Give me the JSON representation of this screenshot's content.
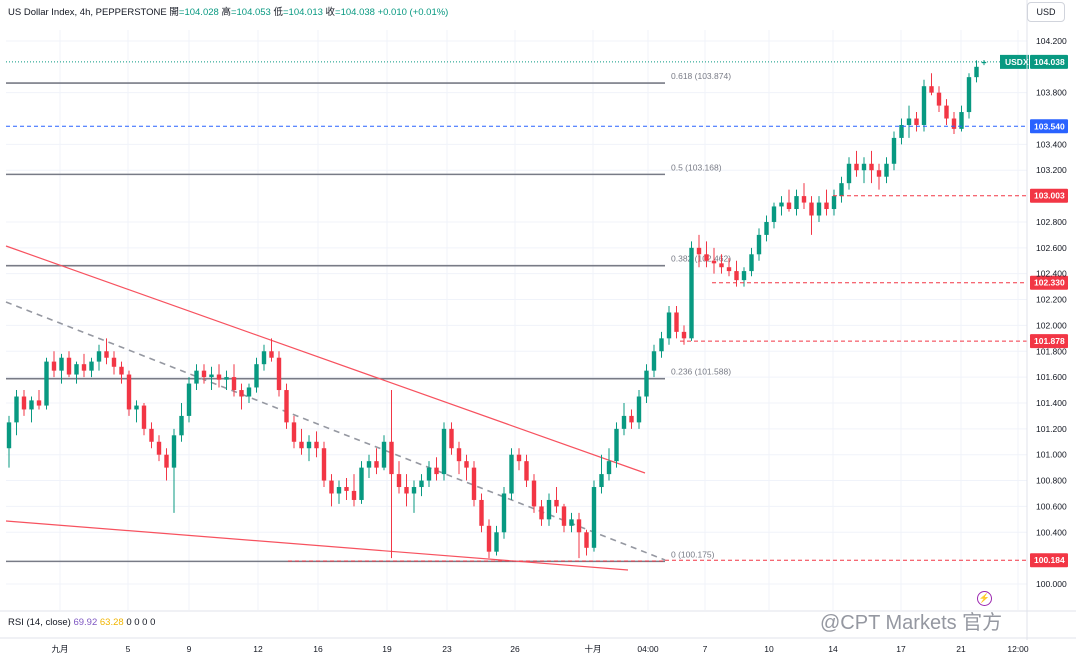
{
  "header": {
    "symbol_text": "US Dollar Index, 4h, PEPPERSTONE",
    "open_label": "開",
    "open_value": "=104.028",
    "high_label": "高",
    "high_value": "=104.053",
    "low_label": "低",
    "low_value": "=104.013",
    "close_label": "收",
    "close_value": "=104.038",
    "change": "+0.010 (+0.01%)"
  },
  "currency_button": "USD",
  "rsi": {
    "label": "RSI (14, close)",
    "value": "69.92",
    "ma_value": "63.28",
    "extra": "0 0 0 0"
  },
  "watermark": "@CPT Markets 官方",
  "colors": {
    "up": "#089981",
    "down": "#f23645",
    "blue": "#2962ff",
    "fib": "#787b86"
  },
  "chart_data": {
    "type": "candlestick",
    "symbol": "USDX",
    "timeframe": "4h",
    "x_tick_labels": [
      "九月",
      "5",
      "9",
      "12",
      "16",
      "19",
      "23",
      "26",
      "十月",
      "04:00",
      "7",
      "10",
      "14",
      "17",
      "21",
      "12:00"
    ],
    "y_ticks": [
      "104.200",
      "103.800",
      "103.400",
      "103.200",
      "102.800",
      "102.600",
      "102.400",
      "102.200",
      "102.000",
      "101.800",
      "101.600",
      "101.400",
      "101.200",
      "101.000",
      "100.800",
      "100.600",
      "100.400",
      "100.000"
    ],
    "ylim": [
      99.82,
      104.45
    ],
    "fibonacci": [
      {
        "label": "0.618 (103.874)",
        "value": 103.874
      },
      {
        "label": "0.5 (103.168)",
        "value": 103.168
      },
      {
        "label": "0.382 (102.462)",
        "value": 102.462
      },
      {
        "label": "0.236 (101.588)",
        "value": 101.588
      },
      {
        "label": "0 (100.175)",
        "value": 100.175
      }
    ],
    "price_tags": [
      {
        "label": "USDX",
        "value": "104.038",
        "kind": "last"
      },
      {
        "label": "",
        "value": "103.540",
        "kind": "blue"
      },
      {
        "label": "",
        "value": "103.003",
        "kind": "red"
      },
      {
        "label": "",
        "value": "102.330",
        "kind": "red"
      },
      {
        "label": "",
        "value": "101.878",
        "kind": "red"
      },
      {
        "label": "",
        "value": "100.184",
        "kind": "red"
      }
    ],
    "candles": [
      [
        101.05,
        101.3,
        100.9,
        101.25
      ],
      [
        101.25,
        101.5,
        101.15,
        101.45
      ],
      [
        101.45,
        101.5,
        101.3,
        101.35
      ],
      [
        101.35,
        101.45,
        101.25,
        101.42
      ],
      [
        101.42,
        101.5,
        101.35,
        101.38
      ],
      [
        101.38,
        101.75,
        101.35,
        101.72
      ],
      [
        101.72,
        101.8,
        101.6,
        101.65
      ],
      [
        101.65,
        101.78,
        101.55,
        101.75
      ],
      [
        101.75,
        101.8,
        101.6,
        101.62
      ],
      [
        101.62,
        101.72,
        101.55,
        101.7
      ],
      [
        101.7,
        101.78,
        101.6,
        101.65
      ],
      [
        101.65,
        101.75,
        101.6,
        101.72
      ],
      [
        101.72,
        101.85,
        101.65,
        101.8
      ],
      [
        101.8,
        101.9,
        101.7,
        101.75
      ],
      [
        101.75,
        101.8,
        101.62,
        101.68
      ],
      [
        101.68,
        101.72,
        101.55,
        101.62
      ],
      [
        101.62,
        101.65,
        101.3,
        101.35
      ],
      [
        101.35,
        101.42,
        101.25,
        101.38
      ],
      [
        101.38,
        101.4,
        101.15,
        101.2
      ],
      [
        101.2,
        101.25,
        101.05,
        101.1
      ],
      [
        101.1,
        101.15,
        100.95,
        101.0
      ],
      [
        101.0,
        101.05,
        100.8,
        100.9
      ],
      [
        100.9,
        101.2,
        100.55,
        101.15
      ],
      [
        101.15,
        101.4,
        101.1,
        101.3
      ],
      [
        101.3,
        101.6,
        101.25,
        101.55
      ],
      [
        101.55,
        101.7,
        101.5,
        101.65
      ],
      [
        101.65,
        101.7,
        101.55,
        101.6
      ],
      [
        101.6,
        101.68,
        101.5,
        101.62
      ],
      [
        101.62,
        101.7,
        101.52,
        101.58
      ],
      [
        101.58,
        101.65,
        101.5,
        101.6
      ],
      [
        101.6,
        101.7,
        101.45,
        101.5
      ],
      [
        101.5,
        101.55,
        101.35,
        101.45
      ],
      [
        101.45,
        101.55,
        101.4,
        101.52
      ],
      [
        101.52,
        101.75,
        101.48,
        101.7
      ],
      [
        101.7,
        101.85,
        101.65,
        101.8
      ],
      [
        101.8,
        101.9,
        101.72,
        101.75
      ],
      [
        101.75,
        101.8,
        101.45,
        101.5
      ],
      [
        101.5,
        101.55,
        101.2,
        101.25
      ],
      [
        101.25,
        101.3,
        101.05,
        101.1
      ],
      [
        101.1,
        101.2,
        101.0,
        101.05
      ],
      [
        101.05,
        101.15,
        100.95,
        101.1
      ],
      [
        101.1,
        101.18,
        100.98,
        101.05
      ],
      [
        101.05,
        101.1,
        100.75,
        100.8
      ],
      [
        100.8,
        100.85,
        100.6,
        100.7
      ],
      [
        100.7,
        100.8,
        100.62,
        100.75
      ],
      [
        100.75,
        100.82,
        100.65,
        100.72
      ],
      [
        100.72,
        100.85,
        100.6,
        100.65
      ],
      [
        100.65,
        100.95,
        100.62,
        100.9
      ],
      [
        100.9,
        101.0,
        100.82,
        100.95
      ],
      [
        100.95,
        101.05,
        100.85,
        100.9
      ],
      [
        100.9,
        101.15,
        100.88,
        101.1
      ],
      [
        101.1,
        101.5,
        100.2,
        100.85
      ],
      [
        100.85,
        100.95,
        100.7,
        100.75
      ],
      [
        100.75,
        100.85,
        100.6,
        100.7
      ],
      [
        100.7,
        100.8,
        100.55,
        100.75
      ],
      [
        100.75,
        100.85,
        100.68,
        100.8
      ],
      [
        100.8,
        100.95,
        100.75,
        100.9
      ],
      [
        100.9,
        100.98,
        100.8,
        100.85
      ],
      [
        100.85,
        101.25,
        100.8,
        101.2
      ],
      [
        101.2,
        101.25,
        101.0,
        101.05
      ],
      [
        101.05,
        101.1,
        100.85,
        100.95
      ],
      [
        100.95,
        101.0,
        100.8,
        100.9
      ],
      [
        100.9,
        100.95,
        100.6,
        100.65
      ],
      [
        100.65,
        100.7,
        100.4,
        100.45
      ],
      [
        100.45,
        100.5,
        100.2,
        100.25
      ],
      [
        100.25,
        100.45,
        100.22,
        100.4
      ],
      [
        100.4,
        100.75,
        100.35,
        100.7
      ],
      [
        100.7,
        101.05,
        100.65,
        101.0
      ],
      [
        101.0,
        101.05,
        100.88,
        100.95
      ],
      [
        100.95,
        101.0,
        100.75,
        100.8
      ],
      [
        100.8,
        100.85,
        100.55,
        100.6
      ],
      [
        100.6,
        100.65,
        100.45,
        100.5
      ],
      [
        100.5,
        100.7,
        100.45,
        100.65
      ],
      [
        100.65,
        100.75,
        100.55,
        100.6
      ],
      [
        100.6,
        100.62,
        100.4,
        100.45
      ],
      [
        100.45,
        100.55,
        100.4,
        100.5
      ],
      [
        100.5,
        100.55,
        100.2,
        100.4
      ],
      [
        100.4,
        100.42,
        100.22,
        100.28
      ],
      [
        100.28,
        100.8,
        100.25,
        100.75
      ],
      [
        100.75,
        101.0,
        100.7,
        100.85
      ],
      [
        100.85,
        101.05,
        100.8,
        100.95
      ],
      [
        100.95,
        101.25,
        100.9,
        101.2
      ],
      [
        101.2,
        101.4,
        101.15,
        101.3
      ],
      [
        101.3,
        101.35,
        101.2,
        101.25
      ],
      [
        101.25,
        101.5,
        101.2,
        101.45
      ],
      [
        101.45,
        101.7,
        101.4,
        101.65
      ],
      [
        101.65,
        101.85,
        101.6,
        101.8
      ],
      [
        101.8,
        101.95,
        101.75,
        101.9
      ],
      [
        101.9,
        102.15,
        101.85,
        102.1
      ],
      [
        102.1,
        102.15,
        101.9,
        101.95
      ],
      [
        101.95,
        102.0,
        101.85,
        101.9
      ],
      [
        101.9,
        102.65,
        101.88,
        102.6
      ],
      [
        102.6,
        102.7,
        102.45,
        102.55
      ],
      [
        102.55,
        102.65,
        102.45,
        102.5
      ],
      [
        102.5,
        102.6,
        102.4,
        102.48
      ],
      [
        102.48,
        102.55,
        102.4,
        102.45
      ],
      [
        102.45,
        102.52,
        102.38,
        102.42
      ],
      [
        102.42,
        102.5,
        102.3,
        102.35
      ],
      [
        102.35,
        102.45,
        102.3,
        102.42
      ],
      [
        102.42,
        102.6,
        102.38,
        102.55
      ],
      [
        102.55,
        102.75,
        102.5,
        102.7
      ],
      [
        102.7,
        102.85,
        102.65,
        102.8
      ],
      [
        102.8,
        102.95,
        102.75,
        102.92
      ],
      [
        102.92,
        103.0,
        102.85,
        102.95
      ],
      [
        102.95,
        103.05,
        102.88,
        102.9
      ],
      [
        102.9,
        103.05,
        102.85,
        103.0
      ],
      [
        103.0,
        103.1,
        102.9,
        102.95
      ],
      [
        102.95,
        103.0,
        102.7,
        102.85
      ],
      [
        102.85,
        103.0,
        102.8,
        102.95
      ],
      [
        102.95,
        103.05,
        102.85,
        102.9
      ],
      [
        102.9,
        103.05,
        102.85,
        103.0
      ],
      [
        103.0,
        103.15,
        102.95,
        103.1
      ],
      [
        103.1,
        103.3,
        103.05,
        103.25
      ],
      [
        103.25,
        103.35,
        103.15,
        103.2
      ],
      [
        103.2,
        103.3,
        103.1,
        103.25
      ],
      [
        103.25,
        103.35,
        103.1,
        103.2
      ],
      [
        103.2,
        103.25,
        103.05,
        103.15
      ],
      [
        103.15,
        103.3,
        103.1,
        103.25
      ],
      [
        103.25,
        103.5,
        103.2,
        103.45
      ],
      [
        103.45,
        103.6,
        103.4,
        103.55
      ],
      [
        103.55,
        103.7,
        103.45,
        103.6
      ],
      [
        103.6,
        103.65,
        103.5,
        103.55
      ],
      [
        103.55,
        103.9,
        103.5,
        103.85
      ],
      [
        103.85,
        103.95,
        103.78,
        103.8
      ],
      [
        103.8,
        103.85,
        103.65,
        103.7
      ],
      [
        103.7,
        103.75,
        103.55,
        103.6
      ],
      [
        103.6,
        103.65,
        103.48,
        103.52
      ],
      [
        103.52,
        103.7,
        103.5,
        103.65
      ],
      [
        103.65,
        103.95,
        103.6,
        103.92
      ],
      [
        103.92,
        104.05,
        103.88,
        104.0
      ],
      [
        104.028,
        104.053,
        104.013,
        104.038
      ]
    ]
  }
}
